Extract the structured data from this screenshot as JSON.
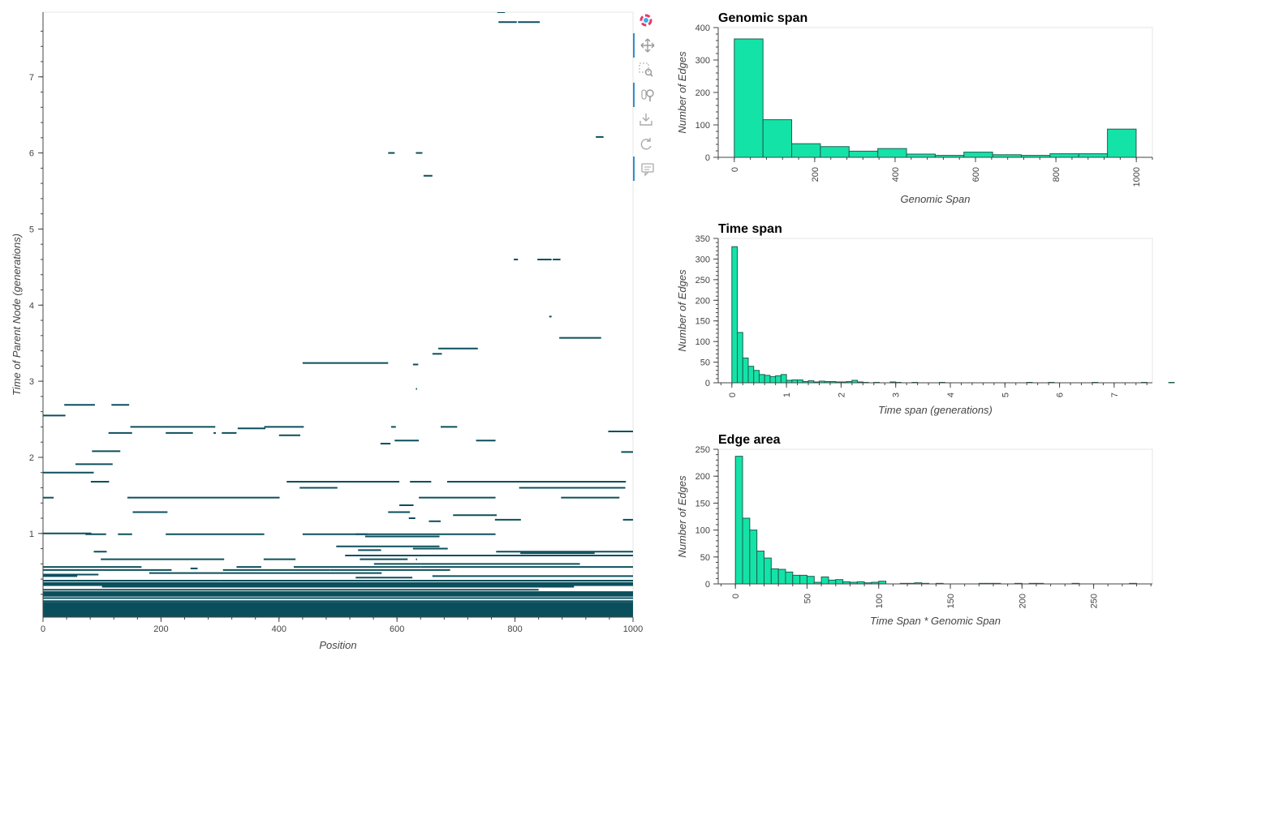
{
  "colors": {
    "edge": "#0b4f5c",
    "bar_fill": "#14e3a8",
    "bar_stroke": "#1f5d4f",
    "axis": "#444444",
    "toolbar_active": "#2b8fd1"
  },
  "toolbar": {
    "tools": [
      {
        "icon": "bokeh-logo-icon",
        "active": false
      },
      {
        "icon": "pan-icon",
        "active": true
      },
      {
        "icon": "box-zoom-icon",
        "active": false
      },
      {
        "icon": "wheel-zoom-icon",
        "active": true
      },
      {
        "icon": "save-icon",
        "active": false
      },
      {
        "icon": "reset-icon",
        "active": false
      },
      {
        "icon": "hover-icon",
        "active": true
      }
    ]
  },
  "chart_data": [
    {
      "type": "scatter",
      "subtype": "horizontal-segments",
      "title": "",
      "xlabel": "Position",
      "ylabel": "Time of Parent Node (generations)",
      "xlim": [
        0,
        1000
      ],
      "ylim": [
        -0.1,
        7.85
      ],
      "x_ticks": [
        "0",
        "200",
        "400",
        "600",
        "800",
        "1000"
      ],
      "y_ticks": [
        "1",
        "2",
        "3",
        "4",
        "5",
        "6",
        "7"
      ],
      "segments": [
        {
          "left": 770,
          "right": 783,
          "time": 7.85
        },
        {
          "left": 772,
          "right": 803,
          "time": 7.72
        },
        {
          "left": 805,
          "right": 842,
          "time": 7.72
        },
        {
          "left": 937,
          "right": 950,
          "time": 6.21
        },
        {
          "left": 585,
          "right": 596,
          "time": 6.0
        },
        {
          "left": 632,
          "right": 643,
          "time": 6.0
        },
        {
          "left": 645,
          "right": 660,
          "time": 5.7
        },
        {
          "left": 798,
          "right": 805,
          "time": 4.6
        },
        {
          "left": 838,
          "right": 862,
          "time": 4.6
        },
        {
          "left": 864,
          "right": 877,
          "time": 4.6
        },
        {
          "left": 858,
          "right": 862,
          "time": 3.85
        },
        {
          "left": 875,
          "right": 946,
          "time": 3.57
        },
        {
          "left": 670,
          "right": 737,
          "time": 3.43
        },
        {
          "left": 660,
          "right": 676,
          "time": 3.36
        },
        {
          "left": 440,
          "right": 585,
          "time": 3.24
        },
        {
          "left": 627,
          "right": 636,
          "time": 3.22
        },
        {
          "left": 632,
          "right": 634,
          "time": 2.9
        },
        {
          "left": 36,
          "right": 88,
          "time": 2.69
        },
        {
          "left": 116,
          "right": 146,
          "time": 2.69
        },
        {
          "left": 0,
          "right": 38,
          "time": 2.55
        },
        {
          "left": 148,
          "right": 292,
          "time": 2.4
        },
        {
          "left": 375,
          "right": 442,
          "time": 2.4
        },
        {
          "left": 590,
          "right": 598,
          "time": 2.4
        },
        {
          "left": 674,
          "right": 702,
          "time": 2.4
        },
        {
          "left": 330,
          "right": 377,
          "time": 2.38
        },
        {
          "left": 111,
          "right": 151,
          "time": 2.32
        },
        {
          "left": 208,
          "right": 254,
          "time": 2.32
        },
        {
          "left": 289,
          "right": 293,
          "time": 2.32
        },
        {
          "left": 303,
          "right": 328,
          "time": 2.32
        },
        {
          "left": 400,
          "right": 436,
          "time": 2.29
        },
        {
          "left": 958,
          "right": 1000,
          "time": 2.34
        },
        {
          "left": 1000,
          "right": 1010,
          "time": 2.32
        },
        {
          "left": 596,
          "right": 637,
          "time": 2.22
        },
        {
          "left": 734,
          "right": 767,
          "time": 2.22
        },
        {
          "left": 572,
          "right": 589,
          "time": 2.18
        },
        {
          "left": 83,
          "right": 131,
          "time": 2.08
        },
        {
          "left": 980,
          "right": 1005,
          "time": 2.07
        },
        {
          "left": 55,
          "right": 118,
          "time": 1.91
        },
        {
          "left": 0,
          "right": 86,
          "time": 1.8
        },
        {
          "left": 81,
          "right": 112,
          "time": 1.68
        },
        {
          "left": 413,
          "right": 604,
          "time": 1.68
        },
        {
          "left": 622,
          "right": 658,
          "time": 1.68
        },
        {
          "left": 685,
          "right": 988,
          "time": 1.68
        },
        {
          "left": 435,
          "right": 499,
          "time": 1.6
        },
        {
          "left": 807,
          "right": 987,
          "time": 1.6
        },
        {
          "left": 0,
          "right": 18,
          "time": 1.47
        },
        {
          "left": 143,
          "right": 401,
          "time": 1.47
        },
        {
          "left": 637,
          "right": 767,
          "time": 1.47
        },
        {
          "left": 878,
          "right": 977,
          "time": 1.47
        },
        {
          "left": 604,
          "right": 628,
          "time": 1.37
        },
        {
          "left": 152,
          "right": 211,
          "time": 1.28
        },
        {
          "left": 585,
          "right": 622,
          "time": 1.28
        },
        {
          "left": 695,
          "right": 769,
          "time": 1.24
        },
        {
          "left": 620,
          "right": 631,
          "time": 1.2
        },
        {
          "left": 654,
          "right": 674,
          "time": 1.16
        },
        {
          "left": 766,
          "right": 810,
          "time": 1.18
        },
        {
          "left": 983,
          "right": 1000,
          "time": 1.18
        },
        {
          "left": 0,
          "right": 82,
          "time": 1.0
        },
        {
          "left": 72,
          "right": 107,
          "time": 0.99
        },
        {
          "left": 127,
          "right": 151,
          "time": 0.99
        },
        {
          "left": 208,
          "right": 375,
          "time": 0.99
        },
        {
          "left": 440,
          "right": 550,
          "time": 0.99
        },
        {
          "left": 530,
          "right": 767,
          "time": 0.99
        },
        {
          "left": 546,
          "right": 672,
          "time": 0.96
        },
        {
          "left": 497,
          "right": 672,
          "time": 0.83
        },
        {
          "left": 534,
          "right": 573,
          "time": 0.78
        },
        {
          "left": 627,
          "right": 686,
          "time": 0.8
        },
        {
          "left": 86,
          "right": 108,
          "time": 0.76
        },
        {
          "left": 768,
          "right": 1000,
          "time": 0.76
        },
        {
          "left": 809,
          "right": 935,
          "time": 0.74
        },
        {
          "left": 768,
          "right": 809,
          "time": 0.71
        },
        {
          "left": 512,
          "right": 1000,
          "time": 0.71
        },
        {
          "left": 98,
          "right": 307,
          "time": 0.66
        },
        {
          "left": 374,
          "right": 428,
          "time": 0.66
        },
        {
          "left": 537,
          "right": 618,
          "time": 0.66
        },
        {
          "left": 632,
          "right": 634,
          "time": 0.66
        },
        {
          "left": 561,
          "right": 910,
          "time": 0.6
        },
        {
          "left": 0,
          "right": 167,
          "time": 0.56
        },
        {
          "left": 0,
          "right": 218,
          "time": 0.52
        },
        {
          "left": 250,
          "right": 262,
          "time": 0.54
        },
        {
          "left": 328,
          "right": 370,
          "time": 0.56
        },
        {
          "left": 425,
          "right": 640,
          "time": 0.56
        },
        {
          "left": 640,
          "right": 1000,
          "time": 0.56
        },
        {
          "left": 305,
          "right": 486,
          "time": 0.52
        },
        {
          "left": 486,
          "right": 690,
          "time": 0.52
        },
        {
          "left": 0,
          "right": 94,
          "time": 0.46
        },
        {
          "left": 180,
          "right": 574,
          "time": 0.48
        },
        {
          "left": 0,
          "right": 58,
          "time": 0.44
        },
        {
          "left": 660,
          "right": 1000,
          "time": 0.44
        },
        {
          "left": 530,
          "right": 626,
          "time": 0.42
        },
        {
          "left": 0,
          "right": 300,
          "time": 0.38
        },
        {
          "left": 300,
          "right": 1000,
          "time": 0.38
        },
        {
          "left": 0,
          "right": 1000,
          "time": 0.33
        },
        {
          "left": 100,
          "right": 900,
          "time": 0.3
        },
        {
          "left": 0,
          "right": 840,
          "time": 0.26
        },
        {
          "left": 150,
          "right": 1000,
          "time": 0.22
        },
        {
          "left": 0,
          "right": 1000,
          "time": 0.19
        },
        {
          "left": 0,
          "right": 1000,
          "time": 0.15
        },
        {
          "left": 0,
          "right": 1000,
          "time": 0.11
        },
        {
          "left": 0,
          "right": 1000,
          "time": 0.07
        },
        {
          "left": 0,
          "right": 1000,
          "time": 0.03
        },
        {
          "left": 0,
          "right": 1000,
          "time": 0.0
        }
      ],
      "bands": [
        {
          "t0": -0.1,
          "t1": 0.1
        },
        {
          "t0": 0.17,
          "t1": 0.24
        },
        {
          "t0": 0.31,
          "t1": 0.36
        }
      ]
    },
    {
      "type": "bar",
      "subtype": "histogram",
      "title": "Genomic span",
      "xlabel": "Genomic Span",
      "ylabel": "Number of Edges",
      "xlim": [
        -40,
        1040
      ],
      "ylim": [
        0,
        400
      ],
      "x_ticks": [
        0,
        200,
        400,
        600,
        800,
        1000
      ],
      "y_ticks": [
        0,
        100,
        200,
        300,
        400
      ],
      "bin_start": 0,
      "bin_width": 71.4,
      "values": [
        365,
        116,
        42,
        33,
        19,
        27,
        10,
        6,
        16,
        8,
        6,
        11,
        11,
        87
      ]
    },
    {
      "type": "bar",
      "subtype": "histogram",
      "title": "Time span",
      "xlabel": "Time span (generations)",
      "ylabel": "Number of Edges",
      "xlim": [
        -0.25,
        7.7
      ],
      "ylim": [
        0,
        350
      ],
      "x_ticks": [
        0,
        1,
        2,
        3,
        4,
        5,
        6,
        7
      ],
      "y_ticks": [
        0,
        50,
        100,
        150,
        200,
        250,
        300,
        350
      ],
      "bin_start": 0,
      "bin_width": 0.1,
      "values": [
        330,
        122,
        60,
        40,
        30,
        20,
        18,
        15,
        17,
        20,
        6,
        7,
        7,
        3,
        5,
        2,
        4,
        3,
        3,
        2,
        2,
        3,
        6,
        2,
        1,
        0,
        1,
        0,
        0,
        2,
        1,
        0,
        0,
        1,
        0,
        0,
        0,
        0,
        1,
        0,
        0,
        0,
        0,
        0,
        0,
        0,
        0,
        0,
        0,
        0,
        0,
        0,
        0,
        0,
        1,
        0,
        0,
        0,
        1,
        0,
        0,
        0,
        0,
        0,
        0,
        0,
        1,
        0,
        0,
        0,
        0,
        0,
        0,
        0,
        0,
        1,
        0,
        0,
        0,
        0,
        1
      ]
    },
    {
      "type": "bar",
      "subtype": "histogram",
      "title": "Edge area",
      "xlabel": "Time Span * Genomic Span",
      "ylabel": "Number of Edges",
      "xlim": [
        -12,
        291
      ],
      "ylim": [
        0,
        250
      ],
      "x_ticks": [
        0,
        50,
        100,
        150,
        200,
        250
      ],
      "y_ticks": [
        0,
        50,
        100,
        150,
        200,
        250
      ],
      "bin_start": 0,
      "bin_width": 5,
      "values": [
        237,
        122,
        100,
        61,
        48,
        28,
        27,
        22,
        16,
        16,
        14,
        3,
        13,
        7,
        8,
        4,
        3,
        4,
        2,
        3,
        5,
        0,
        0,
        1,
        1,
        2,
        1,
        0,
        1,
        0,
        0,
        0,
        0,
        0,
        1,
        1,
        1,
        0,
        0,
        1,
        0,
        1,
        1,
        0,
        0,
        0,
        0,
        1,
        0,
        0,
        0,
        0,
        0,
        0,
        0,
        1
      ]
    }
  ]
}
